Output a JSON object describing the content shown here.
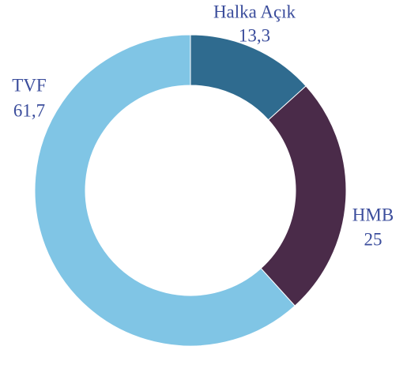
{
  "chart_data": {
    "type": "donut",
    "categories": [
      "Halka Açık",
      "HMB",
      "TVF"
    ],
    "values": [
      13.3,
      25,
      61.7
    ],
    "value_labels": [
      "13,3",
      "25",
      "61,7"
    ],
    "colors": [
      "#2f6b8f",
      "#4a2b49",
      "#80c5e5"
    ]
  }
}
